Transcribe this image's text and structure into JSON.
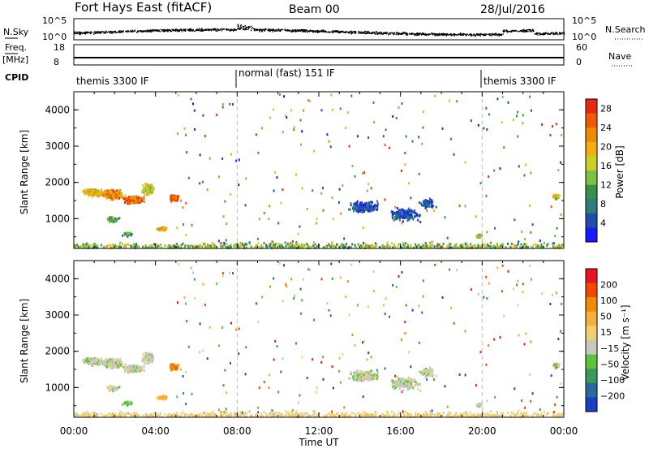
{
  "header": {
    "station": "Fort Hays East (fitACF)",
    "beam": "Beam 00",
    "date": "28/Jul/2016"
  },
  "nsky_panel": {
    "left_label": "N.Sky",
    "right_label": "N.Search",
    "ticks": [
      "10^5",
      "10^0"
    ]
  },
  "freq_panel": {
    "left_label_top": "Freq.",
    "left_label_unit": "[MHz]",
    "left_ticks": [
      "18",
      "8"
    ],
    "right_label": "Nave",
    "right_ticks": [
      "60",
      "0"
    ]
  },
  "cpid_panel": {
    "label": "CPID",
    "segments": [
      {
        "text": "themis 3300 IF",
        "start_hour": 0,
        "end_hour": 8
      },
      {
        "text": "normal (fast) 151 IF",
        "start_hour": 8,
        "end_hour": 20
      },
      {
        "text": "themis 3300 IF",
        "start_hour": 20,
        "end_hour": 24
      }
    ]
  },
  "colors": {
    "power_scale": [
      "#1a1aff",
      "#1f4fa8",
      "#2e7d7a",
      "#3a8f4a",
      "#7cc23c",
      "#c8cf2a",
      "#f0b010",
      "#f08a00",
      "#ee5a00",
      "#e62a10"
    ],
    "velocity_scale": [
      "#e8141e",
      "#f04a00",
      "#f48a00",
      "#f5b13a",
      "#f0d070",
      "#c8c8c0",
      "#5cc43a",
      "#3a9a5a",
      "#2a6a9a",
      "#1a40c0"
    ]
  },
  "chart_data": [
    {
      "type": "heatmap",
      "panel": "power",
      "xlabel": "",
      "ylabel": "Slant Range [km]",
      "ylim": [
        180,
        4500
      ],
      "xlim": [
        0,
        24
      ],
      "yticks": [
        "1000",
        "2000",
        "3000",
        "4000"
      ],
      "colorbar": {
        "label": "Power [dB]",
        "ticks": [
          "4",
          "8",
          "12",
          "16",
          "20",
          "24",
          "28"
        ],
        "range": [
          0,
          30
        ]
      },
      "dashed_lines_hours": [
        8,
        20
      ]
    },
    {
      "type": "heatmap",
      "panel": "velocity",
      "xlabel": "Time UT",
      "ylabel": "Slant Range [km]",
      "ylim": [
        180,
        4500
      ],
      "xlim": [
        0,
        24
      ],
      "yticks": [
        "1000",
        "2000",
        "3000",
        "4000"
      ],
      "xticks": [
        "00:00",
        "04:00",
        "08:00",
        "12:00",
        "16:00",
        "20:00",
        "00:00"
      ],
      "colorbar": {
        "label": "Velocity [m s⁻¹]",
        "ticks": [
          "200",
          "100",
          "50",
          "15",
          "−15",
          "−50",
          "−100",
          "−200"
        ]
      },
      "dashed_lines_hours": [
        8,
        20
      ]
    }
  ]
}
